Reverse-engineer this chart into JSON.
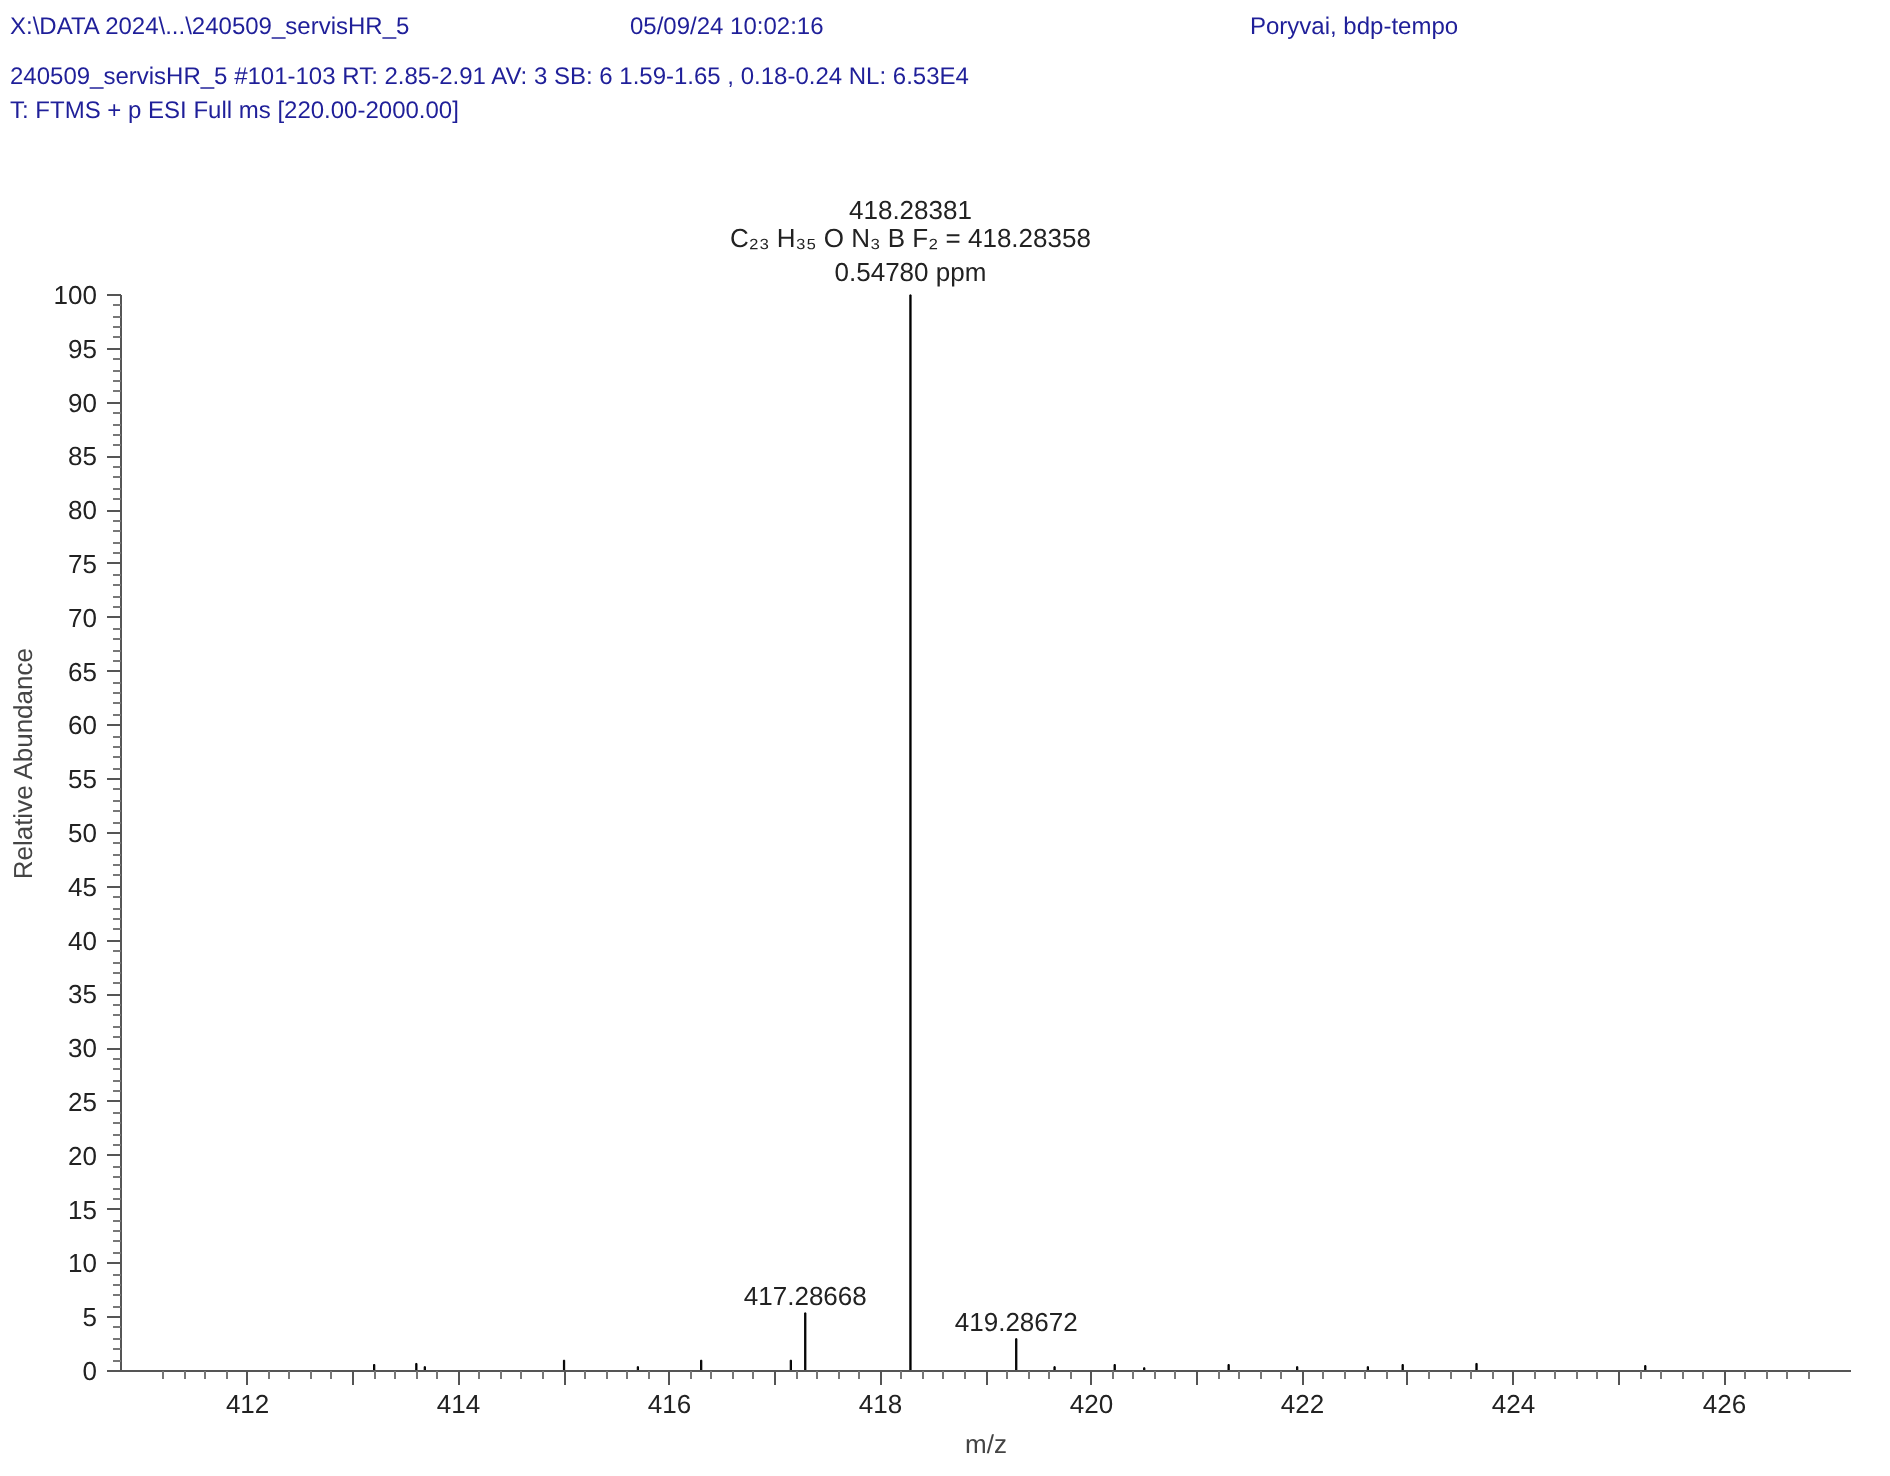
{
  "chart_data": {
    "type": "bar",
    "title": "240509_servisHR_5 #101-103  RT: 2.85-2.91  AV: 3  SB: 6  1.59-1.65 , 0.18-0.24  NL: 6.53E4",
    "subtitle": "T: FTMS + p ESI Full ms [220.00-2000.00]",
    "xlabel": "m/z",
    "ylabel": "Relative Abundance",
    "x": [
      413.2,
      413.6,
      413.68,
      415.0,
      415.7,
      416.3,
      417.15,
      417.28668,
      418.28381,
      419.28672,
      419.65,
      420.22,
      420.5,
      421.3,
      421.95,
      422.62,
      422.95,
      423.65,
      425.25
    ],
    "series": [
      {
        "color": "#000000",
        "values": [
          0.6,
          0.7,
          0.4,
          1.0,
          0.4,
          1.0,
          1.0,
          5.4,
          100,
          3.0,
          0.4,
          0.6,
          0.3,
          0.6,
          0.4,
          0.4,
          0.6,
          0.7,
          0.5
        ]
      }
    ],
    "xlim": [
      410.8,
      427.2
    ],
    "ylim": [
      0,
      100
    ],
    "xticks": [
      412,
      {
        "value": 413,
        "label": null
      },
      414,
      {
        "value": 415,
        "label": null
      },
      416,
      {
        "value": 417,
        "label": null
      },
      418,
      {
        "value": 419,
        "label": null
      },
      420,
      {
        "value": 421,
        "label": null
      },
      422,
      {
        "value": 423,
        "label": null
      },
      424,
      {
        "value": 425,
        "label": null
      },
      426
    ],
    "yticks": [
      0,
      5,
      10,
      15,
      20,
      25,
      30,
      35,
      40,
      45,
      50,
      55,
      60,
      65,
      70,
      75,
      80,
      85,
      90,
      95,
      100
    ],
    "grid": false,
    "annotations": [
      "X:\\DATA 2024\\...\\240509_servisHR_5",
      "05/09/24 10:02:16",
      "Poryvai, bdp-tempo",
      {
        "text": "417.28668",
        "x": 417.28668,
        "y": 5.4
      },
      {
        "text": "418.28381\nC₂₃ H₃₅ O N₃ B F₂ = 418.28358\n0.54780 ppm",
        "x": 418.28381,
        "y": 100
      },
      {
        "text": "419.28672",
        "x": 419.28672,
        "y": 3.0
      }
    ]
  }
}
